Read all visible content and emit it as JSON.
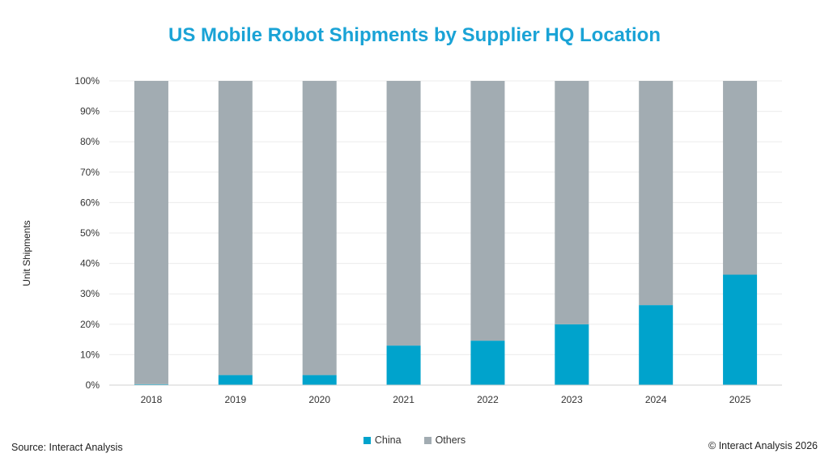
{
  "colors": {
    "title": "#1aa3d6",
    "china": "#00a3cc",
    "others": "#a2acb2",
    "grid": "#ececec",
    "axis_text": "#333333"
  },
  "chart_data": {
    "type": "bar",
    "stacked": true,
    "title": "US Mobile Robot Shipments by Supplier HQ Location",
    "xlabel": "",
    "ylabel": "Unit Shipments",
    "ylim": [
      0,
      100
    ],
    "yticks": [
      "0%",
      "10%",
      "20%",
      "30%",
      "40%",
      "50%",
      "60%",
      "70%",
      "80%",
      "90%",
      "100%"
    ],
    "categories": [
      "2018",
      "2019",
      "2020",
      "2021",
      "2022",
      "2023",
      "2024",
      "2025"
    ],
    "series": [
      {
        "name": "China",
        "values": [
          0.3,
          3.3,
          3.3,
          13,
          14.6,
          20,
          26.3,
          36.3
        ]
      },
      {
        "name": "Others",
        "values": [
          99.7,
          96.7,
          96.7,
          87,
          85.4,
          80,
          73.7,
          63.7
        ]
      }
    ],
    "legend": "bottom-center",
    "grid": true
  },
  "footer": {
    "source": "Source: Interact Analysis",
    "copyright": "© Interact Analysis 2026"
  }
}
